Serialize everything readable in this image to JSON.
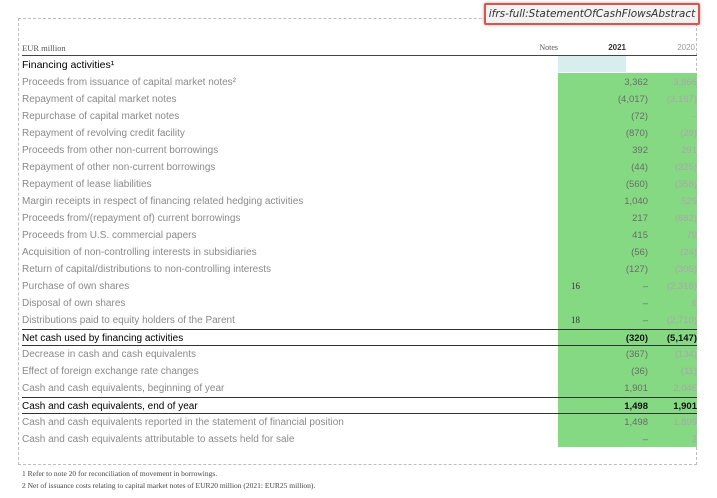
{
  "tag": "ifrs-full:StatementOfCashFlowsAbstract",
  "header": {
    "unit": "EUR million",
    "notes": "Notes",
    "year1": "2021",
    "year2": "2020"
  },
  "rows": [
    {
      "label": "Financing activities¹",
      "note": "",
      "v1": "",
      "v2": ""
    },
    {
      "label": "Proceeds from issuance of capital market notes²",
      "note": "",
      "v1": "3,362",
      "v2": "3,866"
    },
    {
      "label": "Repayment of capital market notes",
      "note": "",
      "v1": "(4,017)",
      "v2": "(3,167)"
    },
    {
      "label": "Repurchase of capital market notes",
      "note": "",
      "v1": "(72)",
      "v2": "–"
    },
    {
      "label": "Repayment of revolving credit facility",
      "note": "",
      "v1": "(870)",
      "v2": "(29)"
    },
    {
      "label": "Proceeds from other non-current borrowings",
      "note": "",
      "v1": "392",
      "v2": "291"
    },
    {
      "label": "Repayment of other non-current borrowings",
      "note": "",
      "v1": "(44)",
      "v2": "(325)"
    },
    {
      "label": "Repayment of lease liabilities",
      "note": "",
      "v1": "(560)",
      "v2": "(358)"
    },
    {
      "label": "Margin receipts in respect of financing related hedging activities",
      "note": "",
      "v1": "1,040",
      "v2": "529"
    },
    {
      "label": "Proceeds from/(repayment of) current borrowings",
      "note": "",
      "v1": "217",
      "v2": "(682)"
    },
    {
      "label": "Proceeds from U.S. commercial papers",
      "note": "",
      "v1": "415",
      "v2": "79"
    },
    {
      "label": "Acquisition of non-controlling interests in subsidiaries",
      "note": "",
      "v1": "(56)",
      "v2": "(24)"
    },
    {
      "label": "Return of capital/distributions to non-controlling interests",
      "note": "",
      "v1": "(127)",
      "v2": "(305)"
    },
    {
      "label": "Purchase of own shares",
      "note": "16",
      "v1": "–",
      "v2": "(2,318)"
    },
    {
      "label": "Disposal of own shares",
      "note": "",
      "v1": "–",
      "v2": "6"
    },
    {
      "label": "Distributions paid to equity holders of the Parent",
      "note": "18",
      "v1": "–",
      "v2": "(2,710)"
    },
    {
      "label": "Net cash used by financing activities",
      "note": "",
      "v1": "(320)",
      "v2": "(5,147)"
    },
    {
      "label": "Decrease in cash and cash equivalents",
      "note": "",
      "v1": "(367)",
      "v2": "(134)"
    },
    {
      "label": "Effect of foreign exchange rate changes",
      "note": "",
      "v1": "(36)",
      "v2": "(11)"
    },
    {
      "label": "Cash and cash equivalents, beginning of year",
      "note": "",
      "v1": "1,901",
      "v2": "2,046"
    },
    {
      "label": "Cash and cash equivalents, end of year",
      "note": "",
      "v1": "1,498",
      "v2": "1,901"
    },
    {
      "label": "Cash and cash equivalents reported in the statement of financial position",
      "note": "",
      "v1": "1,498",
      "v2": "1,899"
    },
    {
      "label": "Cash and cash equivalents attributable to assets held for sale",
      "note": "",
      "v1": "–",
      "v2": "2"
    }
  ],
  "footnotes": [
    "1   Refer to note 20 for reconciliation of movement in borrowings.",
    "2   Net of issuance costs relating to capital market notes of EUR20 million (2021: EUR25 million)."
  ],
  "colors": {
    "highlight": "#86d983",
    "highlight_header": "#d8eeec",
    "tag_border": "#d9534f"
  }
}
